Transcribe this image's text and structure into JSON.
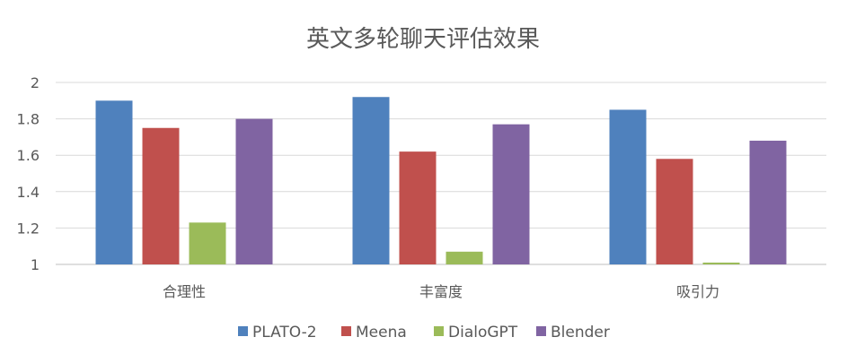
{
  "chart_data": {
    "type": "bar",
    "title": "英文多轮聊天评估效果",
    "categories": [
      "合理性",
      "丰富度",
      "吸引力"
    ],
    "series": [
      {
        "name": "PLATO-2",
        "color": "#4F81BD",
        "values": [
          1.9,
          1.92,
          1.85
        ]
      },
      {
        "name": "Meena",
        "color": "#C0504D",
        "values": [
          1.75,
          1.62,
          1.58
        ]
      },
      {
        "name": "DialoGPT",
        "color": "#9BBB59",
        "values": [
          1.23,
          1.07,
          1.01
        ]
      },
      {
        "name": "Blender",
        "color": "#8064A2",
        "values": [
          1.8,
          1.77,
          1.68
        ]
      }
    ],
    "ylim": [
      1,
      2
    ],
    "yticks": [
      "1",
      "1.2",
      "1.4",
      "1.6",
      "1.8",
      "2"
    ],
    "grid": true,
    "legend_position": "bottom"
  }
}
